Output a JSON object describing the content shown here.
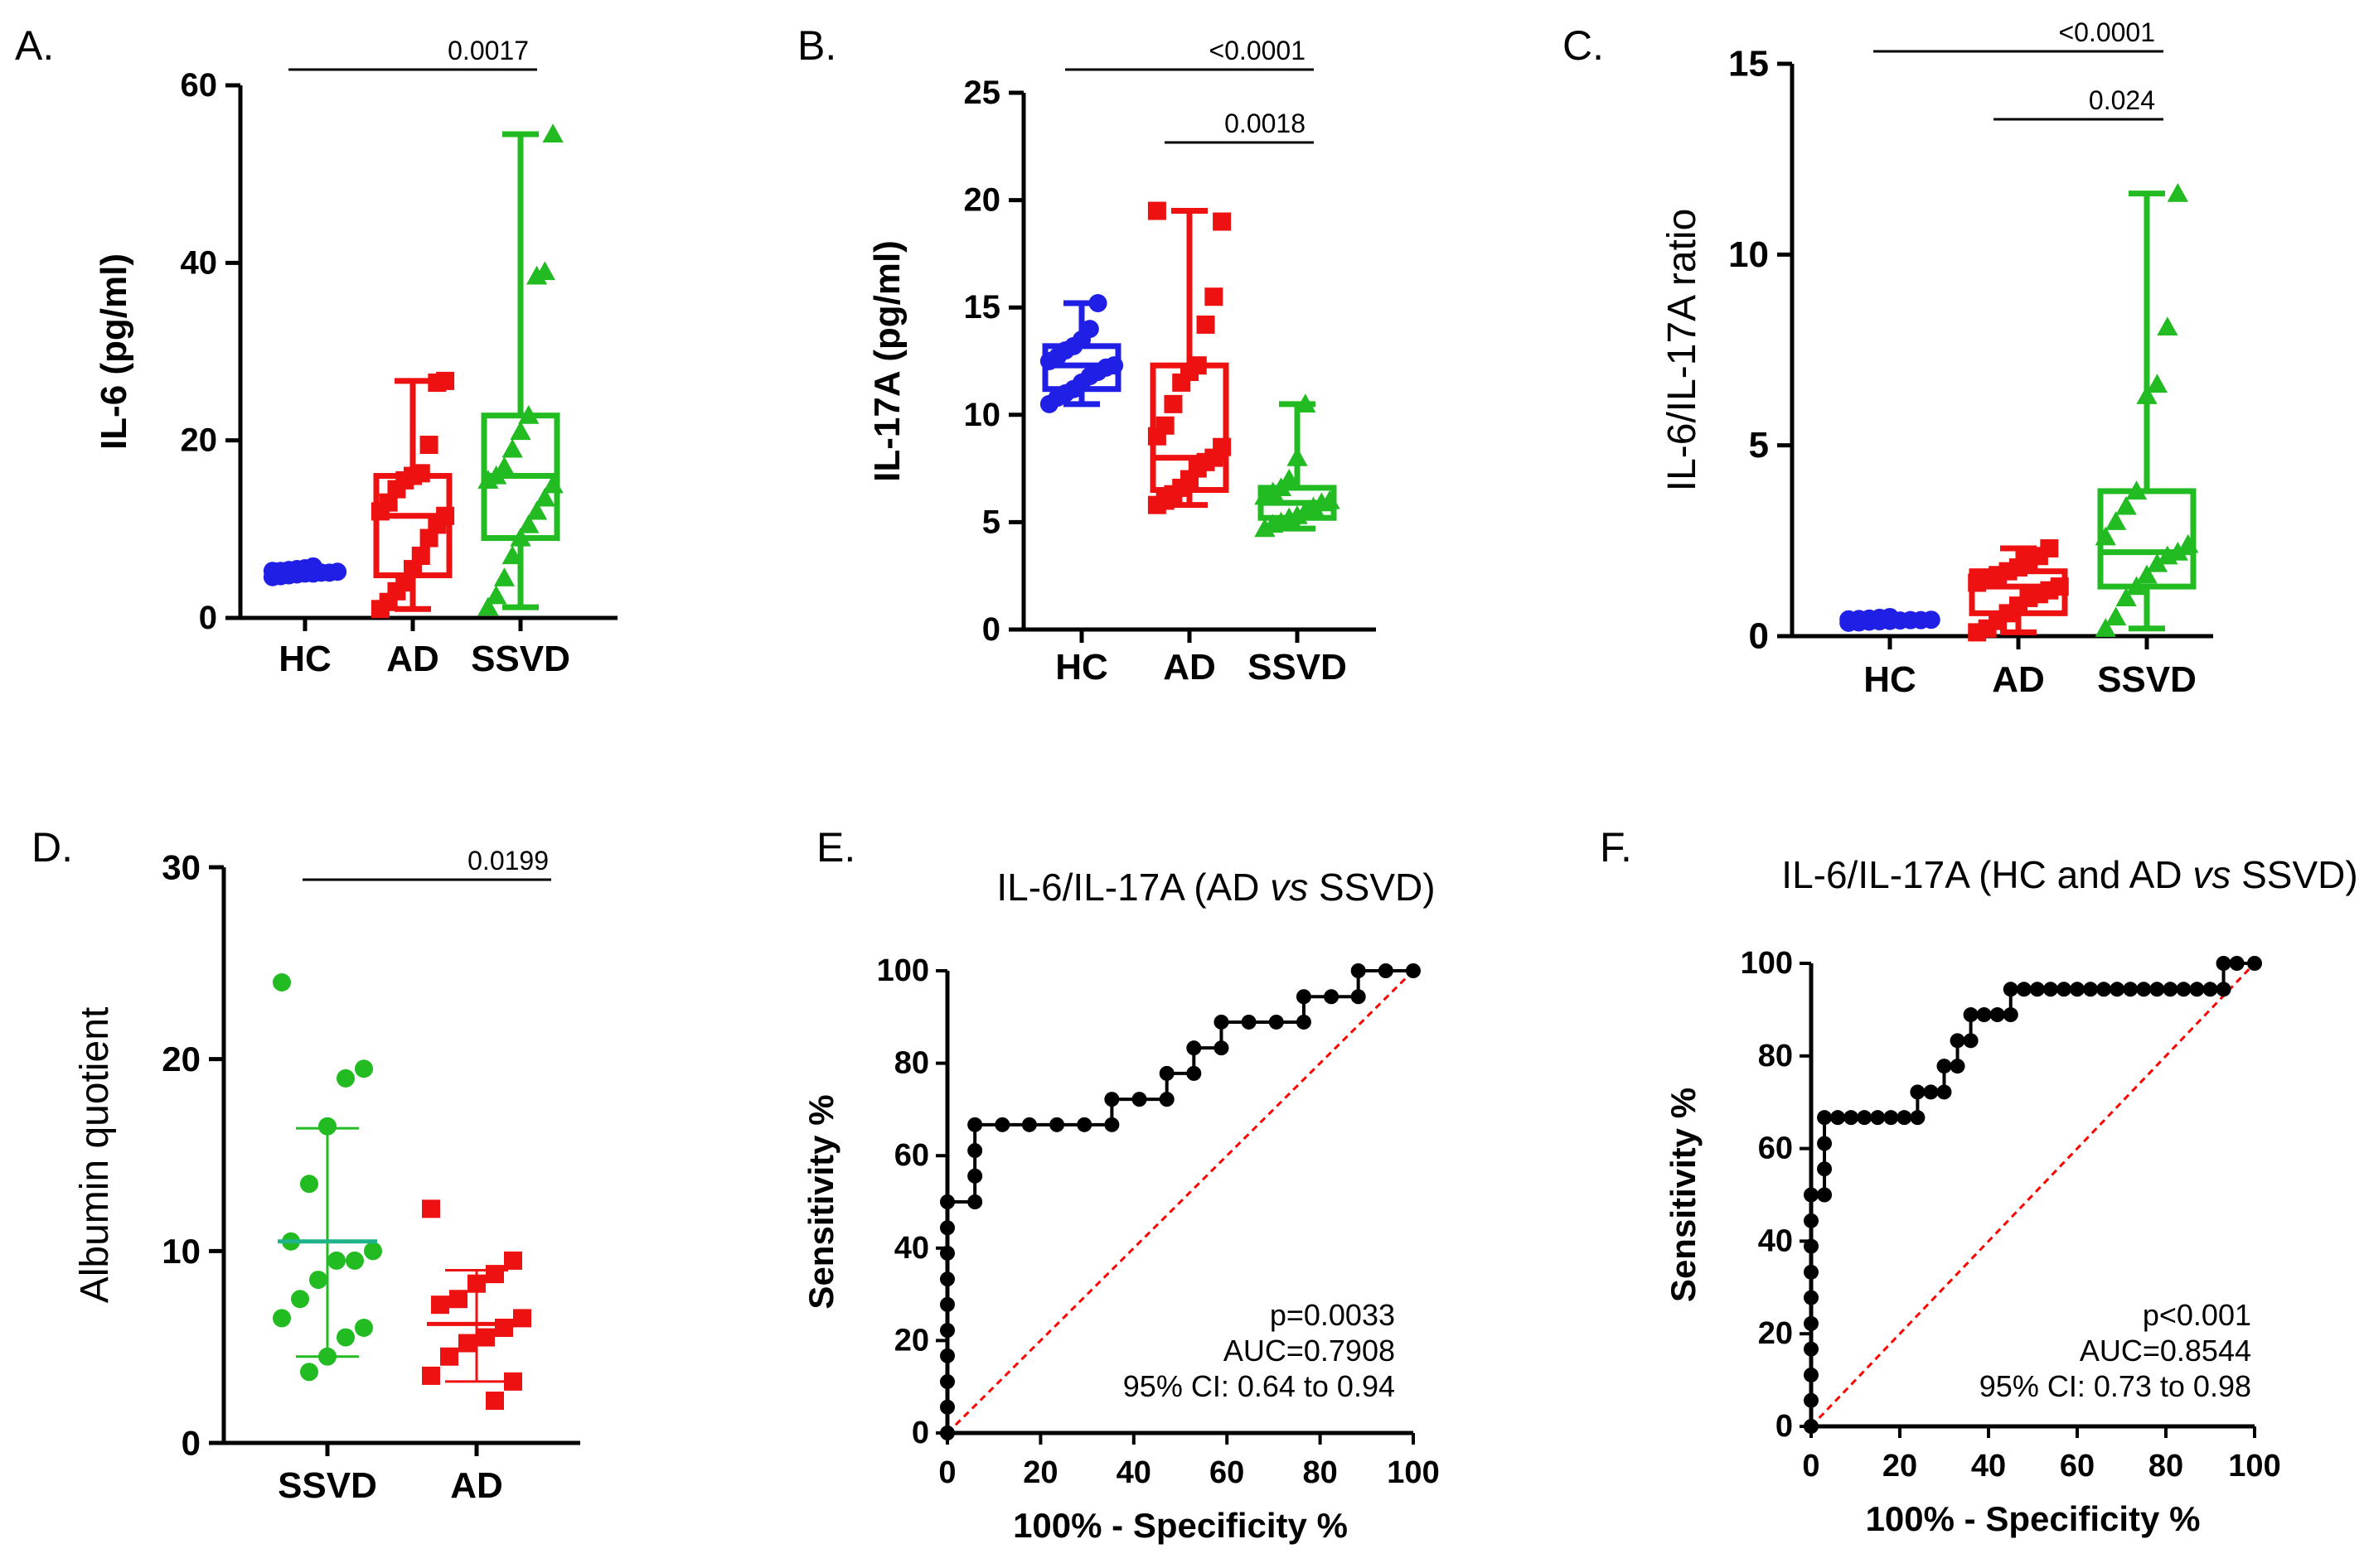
{
  "colors": {
    "HC": "#1f1fe6",
    "AD": "#ee1111",
    "SSVD": "#22bb22",
    "axis": "#000000",
    "chance": "#ff0000",
    "mean_line": "#20b28a"
  },
  "chart_data": [
    {
      "panel": "A.",
      "type": "box",
      "ylabel": "IL-6 (pg/ml)",
      "ylim": [
        0,
        60
      ],
      "yticks": [
        "0",
        "20",
        "40",
        "60"
      ],
      "categories": [
        "HC",
        "AD",
        "SSVD"
      ],
      "groups": [
        {
          "name": "HC",
          "marker": "circle",
          "min": 4.6,
          "q1": 4.9,
          "median": 5.1,
          "q3": 5.4,
          "max": 5.8,
          "points": [
            4.6,
            4.7,
            4.8,
            4.9,
            5.0,
            5.0,
            5.1,
            5.1,
            5.2,
            5.3,
            5.3,
            5.4,
            5.5,
            5.6,
            5.8
          ]
        },
        {
          "name": "AD",
          "marker": "square",
          "min": 1.0,
          "q1": 4.8,
          "median": 11.5,
          "q3": 16.0,
          "max": 26.7,
          "points": [
            1.0,
            1.8,
            3.0,
            4.0,
            5.5,
            7.0,
            9.0,
            10.5,
            11.5,
            12.0,
            13.0,
            14.5,
            15.5,
            16.0,
            16.3,
            19.5,
            26.5,
            26.7
          ]
        },
        {
          "name": "SSVD",
          "marker": "triangle",
          "min": 1.2,
          "q1": 9.0,
          "median": 16.0,
          "q3": 22.8,
          "max": 54.5,
          "points": [
            1.2,
            2.5,
            4.5,
            7.0,
            9.0,
            10.5,
            12.0,
            13.5,
            15.0,
            15.5,
            16.0,
            17.0,
            19.0,
            21.0,
            22.8,
            38.5,
            39.0,
            54.5
          ]
        }
      ],
      "significance": [
        {
          "from": "HC",
          "to": "SSVD",
          "label": "0.0017"
        }
      ]
    },
    {
      "panel": "B.",
      "type": "box",
      "ylabel": "IL-17A (pg/ml)",
      "ylim": [
        0,
        25
      ],
      "yticks": [
        "0",
        "5",
        "10",
        "15",
        "20",
        "25"
      ],
      "categories": [
        "HC",
        "AD",
        "SSVD"
      ],
      "groups": [
        {
          "name": "HC",
          "marker": "circle",
          "min": 10.5,
          "q1": 11.2,
          "median": 12.3,
          "q3": 13.2,
          "max": 15.2,
          "points": [
            10.5,
            10.8,
            11.0,
            11.2,
            11.5,
            11.8,
            12.0,
            12.2,
            12.3,
            12.5,
            12.7,
            13.0,
            13.2,
            13.5,
            14.0,
            15.2
          ]
        },
        {
          "name": "AD",
          "marker": "square",
          "min": 5.8,
          "q1": 6.5,
          "median": 8.0,
          "q3": 12.3,
          "max": 19.5,
          "points": [
            5.8,
            6.0,
            6.3,
            6.6,
            7.0,
            7.5,
            7.8,
            8.0,
            8.5,
            9.0,
            9.5,
            10.5,
            11.5,
            12.0,
            12.3,
            14.2,
            15.5,
            19.0,
            19.5
          ]
        },
        {
          "name": "SSVD",
          "marker": "triangle",
          "min": 4.7,
          "q1": 5.2,
          "median": 5.9,
          "q3": 6.6,
          "max": 10.5,
          "points": [
            4.7,
            4.9,
            5.0,
            5.2,
            5.3,
            5.5,
            5.7,
            5.9,
            6.0,
            6.2,
            6.4,
            6.6,
            7.0,
            8.0,
            10.5
          ]
        }
      ],
      "significance": [
        {
          "from": "HC",
          "to": "SSVD",
          "label": "<0.0001"
        },
        {
          "from": "AD",
          "to": "SSVD",
          "label": "0.0018"
        }
      ]
    },
    {
      "panel": "C.",
      "type": "box",
      "ylabel": "IL-6/IL-17A ratio",
      "ylim": [
        0,
        15
      ],
      "yticks": [
        "0",
        "5",
        "10",
        "15"
      ],
      "categories": [
        "HC",
        "AD",
        "SSVD"
      ],
      "groups": [
        {
          "name": "HC",
          "marker": "circle",
          "min": 0.35,
          "q1": 0.38,
          "median": 0.42,
          "q3": 0.45,
          "max": 0.5,
          "points": [
            0.35,
            0.36,
            0.38,
            0.39,
            0.4,
            0.41,
            0.42,
            0.42,
            0.43,
            0.44,
            0.45,
            0.46,
            0.48,
            0.5
          ]
        },
        {
          "name": "AD",
          "marker": "square",
          "min": 0.1,
          "q1": 0.6,
          "median": 1.3,
          "q3": 1.7,
          "max": 2.3,
          "points": [
            0.1,
            0.2,
            0.4,
            0.6,
            0.8,
            1.0,
            1.1,
            1.2,
            1.3,
            1.4,
            1.5,
            1.6,
            1.7,
            1.8,
            2.0,
            2.1,
            2.3
          ]
        },
        {
          "name": "SSVD",
          "marker": "triangle",
          "min": 0.2,
          "q1": 1.3,
          "median": 2.2,
          "q3": 3.8,
          "max": 11.6,
          "points": [
            0.2,
            0.5,
            1.0,
            1.3,
            1.6,
            1.9,
            2.1,
            2.2,
            2.4,
            2.6,
            3.0,
            3.4,
            3.8,
            6.3,
            6.6,
            8.1,
            11.6
          ]
        }
      ],
      "significance": [
        {
          "from": "HC",
          "to": "SSVD",
          "label": "<0.0001"
        },
        {
          "from": "AD",
          "to": "SSVD",
          "label": "0.024"
        }
      ]
    },
    {
      "panel": "D.",
      "type": "scatter",
      "ylabel": "Albumin quotient",
      "ylim": [
        0,
        30
      ],
      "yticks": [
        "0",
        "10",
        "20",
        "30"
      ],
      "categories": [
        "SSVD",
        "AD"
      ],
      "groups": [
        {
          "name": "SSVD",
          "marker": "circle",
          "mean": 10.5,
          "sd_low": 4.5,
          "sd_high": 16.4,
          "points": [
            24.0,
            19.5,
            19.0,
            16.5,
            13.5,
            10.5,
            10.0,
            9.5,
            9.5,
            8.5,
            7.5,
            6.5,
            6.0,
            5.5,
            4.5,
            3.7
          ]
        },
        {
          "name": "AD",
          "marker": "square",
          "mean": 6.2,
          "sd_low": 3.2,
          "sd_high": 9.0,
          "points": [
            12.2,
            9.5,
            8.8,
            8.3,
            7.5,
            7.2,
            6.5,
            6.0,
            5.5,
            5.2,
            4.5,
            3.5,
            3.2,
            2.2
          ]
        }
      ],
      "significance": [
        {
          "from": "SSVD",
          "to": "AD",
          "label": "0.0199"
        }
      ]
    },
    {
      "panel": "E.",
      "type": "line",
      "title": "IL-6/IL-17A (AD vs SSVD)",
      "title_pre": "IL-6/IL-17A (AD ",
      "title_vs": "vs",
      "title_post": " SSVD)",
      "xlabel": "100% - Specificity %",
      "ylabel": "Sensitivity %",
      "xlim": [
        0,
        100
      ],
      "ylim": [
        0,
        100
      ],
      "ticks": [
        "0",
        "20",
        "40",
        "60",
        "80",
        "100"
      ],
      "roc": [
        [
          0,
          0
        ],
        [
          0,
          5.6
        ],
        [
          0,
          11.1
        ],
        [
          0,
          16.7
        ],
        [
          0,
          22.2
        ],
        [
          0,
          27.8
        ],
        [
          0,
          33.3
        ],
        [
          0,
          38.9
        ],
        [
          0,
          44.4
        ],
        [
          0,
          50
        ],
        [
          5.9,
          50
        ],
        [
          5.9,
          55.6
        ],
        [
          5.9,
          61.1
        ],
        [
          5.9,
          66.7
        ],
        [
          11.8,
          66.7
        ],
        [
          17.6,
          66.7
        ],
        [
          23.5,
          66.7
        ],
        [
          29.4,
          66.7
        ],
        [
          35.3,
          66.7
        ],
        [
          35.3,
          72.2
        ],
        [
          41.2,
          72.2
        ],
        [
          47.1,
          72.2
        ],
        [
          47.1,
          77.8
        ],
        [
          52.9,
          77.8
        ],
        [
          52.9,
          83.3
        ],
        [
          58.8,
          83.3
        ],
        [
          58.8,
          88.9
        ],
        [
          64.7,
          88.9
        ],
        [
          70.6,
          88.9
        ],
        [
          76.5,
          88.9
        ],
        [
          76.5,
          94.4
        ],
        [
          82.4,
          94.4
        ],
        [
          88.2,
          94.4
        ],
        [
          88.2,
          100
        ],
        [
          94.1,
          100
        ],
        [
          100,
          100
        ]
      ],
      "annotations": [
        "p=0.0033",
        "AUC=0.7908",
        "95% CI: 0.64 to 0.94"
      ]
    },
    {
      "panel": "F.",
      "type": "line",
      "title": "IL-6/IL-17A (HC and AD vs SSVD)",
      "title_pre": "IL-6/IL-17A (HC and AD ",
      "title_vs": "vs",
      "title_post": " SSVD)",
      "xlabel": "100% - Specificity %",
      "ylabel": "Sensitivity %",
      "xlim": [
        0,
        100
      ],
      "ylim": [
        0,
        100
      ],
      "ticks": [
        "0",
        "20",
        "40",
        "60",
        "80",
        "100"
      ],
      "roc": [
        [
          0,
          0
        ],
        [
          0,
          5.6
        ],
        [
          0,
          11.1
        ],
        [
          0,
          16.7
        ],
        [
          0,
          22.2
        ],
        [
          0,
          27.8
        ],
        [
          0,
          33.3
        ],
        [
          0,
          38.9
        ],
        [
          0,
          44.4
        ],
        [
          0,
          50
        ],
        [
          3,
          50
        ],
        [
          3,
          55.6
        ],
        [
          3,
          61.1
        ],
        [
          3,
          66.7
        ],
        [
          6,
          66.7
        ],
        [
          9,
          66.7
        ],
        [
          12,
          66.7
        ],
        [
          15,
          66.7
        ],
        [
          18,
          66.7
        ],
        [
          21,
          66.7
        ],
        [
          24,
          66.7
        ],
        [
          24,
          72.2
        ],
        [
          27,
          72.2
        ],
        [
          30,
          72.2
        ],
        [
          30,
          77.8
        ],
        [
          33,
          77.8
        ],
        [
          33,
          83.3
        ],
        [
          36,
          83.3
        ],
        [
          36,
          88.9
        ],
        [
          39,
          88.9
        ],
        [
          42,
          88.9
        ],
        [
          45,
          88.9
        ],
        [
          45,
          94.4
        ],
        [
          48,
          94.4
        ],
        [
          51,
          94.4
        ],
        [
          54,
          94.4
        ],
        [
          57,
          94.4
        ],
        [
          60,
          94.4
        ],
        [
          63,
          94.4
        ],
        [
          66,
          94.4
        ],
        [
          69,
          94.4
        ],
        [
          72,
          94.4
        ],
        [
          75,
          94.4
        ],
        [
          78,
          94.4
        ],
        [
          81,
          94.4
        ],
        [
          84,
          94.4
        ],
        [
          87,
          94.4
        ],
        [
          90,
          94.4
        ],
        [
          93,
          94.4
        ],
        [
          93,
          100
        ],
        [
          96,
          100
        ],
        [
          100,
          100
        ]
      ],
      "annotations": [
        "p<0.001",
        "AUC=0.8544",
        "95% CI: 0.73  to 0.98"
      ]
    }
  ]
}
